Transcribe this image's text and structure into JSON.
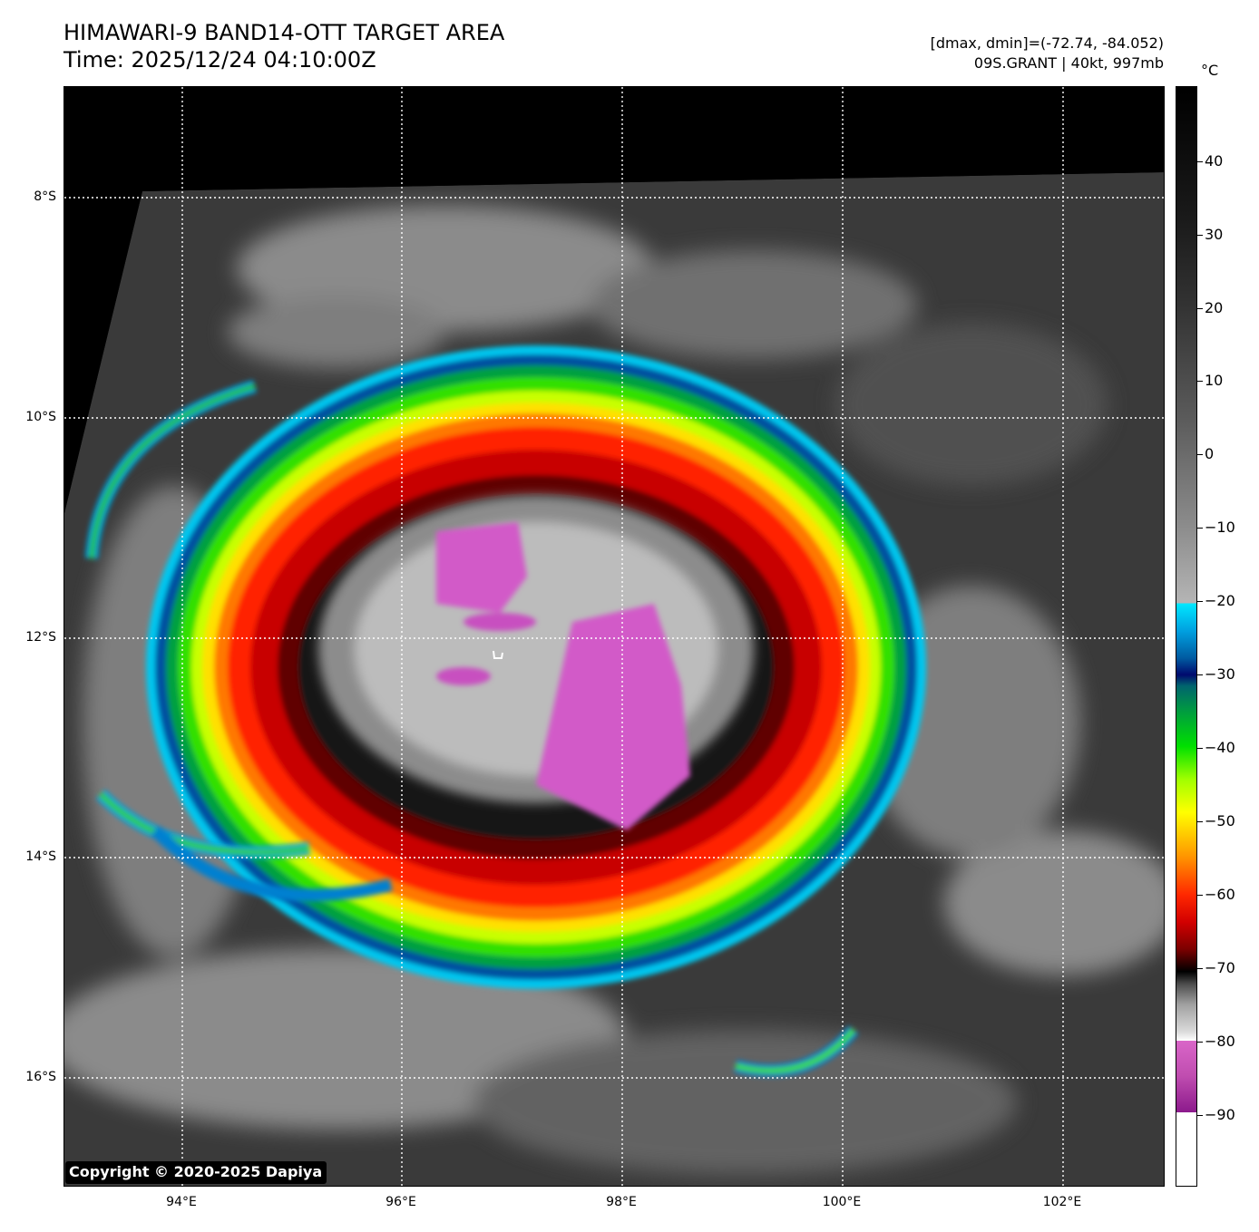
{
  "header": {
    "title": "HIMAWARI-9 BAND14-OTT TARGET AREA",
    "time": "Time: 2025/12/24 04:10:00Z",
    "range": "[dmax, dmin]=(-72.74, -84.052)",
    "storm": "09S.GRANT | 40kt, 997mb"
  },
  "map": {
    "lat_labels": [
      "8°S",
      "10°S",
      "12°S",
      "14°S",
      "16°S"
    ],
    "lon_labels": [
      "94°E",
      "96°E",
      "98°E",
      "100°E",
      "102°E"
    ],
    "gridlines": "dotted white"
  },
  "colorbar": {
    "unit": "°C",
    "tick_labels": [
      "40",
      "30",
      "20",
      "10",
      "0",
      "−10",
      "−20",
      "−30",
      "−40",
      "−50",
      "−60",
      "−70",
      "−80",
      "−90"
    ]
  },
  "copyright": "Copyright © 2020-2025 Dapiya"
}
